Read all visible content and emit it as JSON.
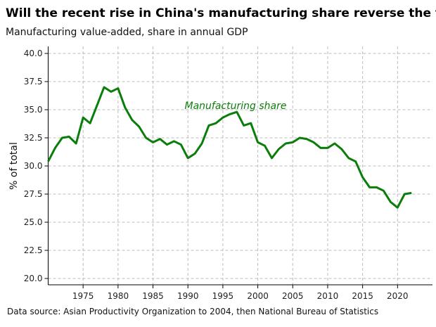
{
  "chart_data": {
    "type": "line",
    "title": "Will the recent rise in China's manufacturing share reverse the trend?",
    "subtitle": "Manufacturing value-added, share in annual GDP",
    "xlabel": "",
    "ylabel": "% of total",
    "xlim": [
      1970,
      2025
    ],
    "ylim": [
      20,
      40
    ],
    "grid": true,
    "xticks": [
      "1975",
      "1980",
      "1985",
      "1990",
      "1995",
      "2000",
      "2005",
      "2010",
      "2015",
      "2020"
    ],
    "yticks": [
      "20.0",
      "22.5",
      "25.0",
      "27.5",
      "30.0",
      "32.5",
      "35.0",
      "37.5",
      "40.0"
    ],
    "series": [
      {
        "name": "Manufacturing share",
        "color": "#0a7d0a",
        "x": [
          1970,
          1971,
          1972,
          1973,
          1974,
          1975,
          1976,
          1977,
          1978,
          1979,
          1980,
          1981,
          1982,
          1983,
          1984,
          1985,
          1986,
          1987,
          1988,
          1989,
          1990,
          1991,
          1992,
          1993,
          1994,
          1995,
          1996,
          1997,
          1998,
          1999,
          2000,
          2001,
          2002,
          2003,
          2004,
          2005,
          2006,
          2007,
          2008,
          2009,
          2010,
          2011,
          2012,
          2013,
          2014,
          2015,
          2016,
          2017,
          2018,
          2019,
          2020,
          2021,
          2022
        ],
        "values": [
          30.4,
          31.6,
          32.5,
          32.6,
          32.0,
          34.3,
          33.8,
          35.4,
          37.0,
          36.6,
          36.9,
          35.2,
          34.1,
          33.5,
          32.5,
          32.1,
          32.4,
          31.9,
          32.2,
          31.9,
          30.7,
          31.1,
          32.0,
          33.6,
          33.8,
          34.3,
          34.6,
          34.8,
          33.6,
          33.8,
          32.1,
          31.8,
          30.7,
          31.5,
          32.0,
          32.1,
          32.5,
          32.4,
          32.1,
          31.6,
          31.6,
          32.0,
          31.5,
          30.7,
          30.4,
          29.0,
          28.1,
          28.1,
          27.8,
          26.8,
          26.3,
          27.5,
          27.6
        ]
      }
    ],
    "source": "Data source: Asian Productivity Organization to 2004, then National Bureau of Statistics"
  }
}
